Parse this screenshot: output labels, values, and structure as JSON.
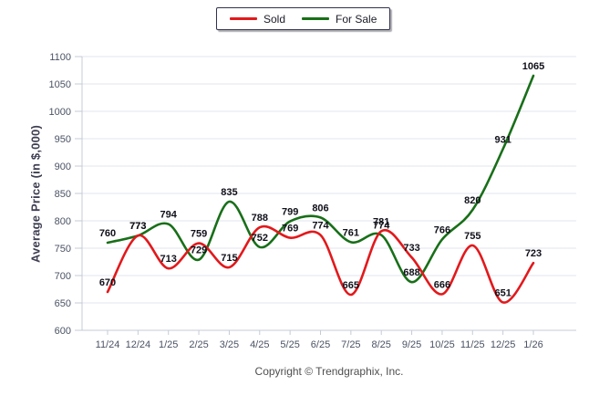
{
  "legend": {
    "items": [
      {
        "label": "Sold",
        "color": "#e2191c"
      },
      {
        "label": "For Sale",
        "color": "#186f18"
      }
    ]
  },
  "footer": {
    "copyright": "Copyright © Trendgraphix, Inc."
  },
  "chart_data": {
    "type": "line",
    "title": "",
    "xlabel": "",
    "ylabel": "Average Price (in $,000)",
    "categories": [
      "11/24",
      "12/24",
      "1/25",
      "2/25",
      "3/25",
      "4/25",
      "5/25",
      "6/25",
      "7/25",
      "8/25",
      "9/25",
      "10/25",
      "11/25",
      "12/25",
      "1/26"
    ],
    "series": [
      {
        "name": "Sold",
        "color": "#e2191c",
        "values": [
          670,
          773,
          713,
          759,
          715,
          788,
          769,
          774,
          665,
          781,
          733,
          666,
          755,
          651,
          723
        ]
      },
      {
        "name": "For Sale",
        "color": "#186f18",
        "values": [
          760,
          773,
          794,
          729,
          835,
          752,
          799,
          806,
          761,
          774,
          688,
          766,
          820,
          931,
          1065
        ]
      }
    ],
    "ylim": [
      600,
      1100
    ],
    "ytick_step": 50,
    "grid": true,
    "point_labels": true,
    "legend_position": "top-center",
    "curve": "smooth-spline"
  },
  "colors": {
    "grid": "#e3e4ed",
    "axis": "#c6cbd6",
    "tick_text": "#4a5264",
    "point_label_text": "#10101a",
    "legend_border": "#31314f",
    "background": "#ffffff"
  }
}
